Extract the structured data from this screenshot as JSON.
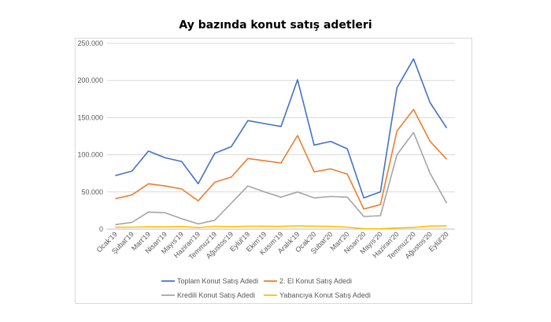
{
  "chart_data": {
    "type": "line",
    "title": "Ay bazında konut satış adetleri",
    "xlabel": "",
    "ylabel": "",
    "ylim": [
      0,
      250000
    ],
    "yticks": [
      "0",
      "50.000",
      "100.000",
      "150.000",
      "200.000",
      "250.000"
    ],
    "ytick_values": [
      0,
      50000,
      100000,
      150000,
      200000,
      250000
    ],
    "grid": true,
    "legend_position": "bottom",
    "categories": [
      "Ocak'19",
      "Şubat'19",
      "Mart'19",
      "Nisan'19",
      "Mayıs'19",
      "Haziran'19",
      "Temmuz'19",
      "Ağustos'19",
      "Eylül'19",
      "Ekim'19",
      "Kasım'19",
      "Aralık'19",
      "Ocak'20",
      "Şubat'20",
      "Mart'20",
      "Nisan'20",
      "Mayıs'20",
      "Haziran'20",
      "Temmuz'20",
      "Ağustos'20",
      "Eylül'20"
    ],
    "series": [
      {
        "name": "Toplam Konut Satış Adedi",
        "color": "#4472c4",
        "values": [
          72000,
          78000,
          105000,
          96000,
          91000,
          61000,
          102000,
          111000,
          146000,
          142000,
          138000,
          201000,
          113000,
          118000,
          108000,
          42000,
          50000,
          190000,
          229000,
          170000,
          136000
        ]
      },
      {
        "name": "2. El Konut Satış Adedi",
        "color": "#ed7d31",
        "values": [
          41000,
          46000,
          61000,
          58000,
          54000,
          38000,
          63000,
          70000,
          95000,
          92000,
          89000,
          126000,
          77000,
          81000,
          74000,
          27000,
          33000,
          132000,
          161000,
          118000,
          94000
        ]
      },
      {
        "name": "Kredili Konut Satış Adedi",
        "color": "#a5a5a5",
        "values": [
          6000,
          9000,
          23000,
          22000,
          14000,
          7000,
          12000,
          35000,
          58000,
          50000,
          43000,
          50000,
          42000,
          44000,
          43000,
          17000,
          18000,
          100000,
          130000,
          75000,
          35000
        ]
      },
      {
        "name": "Yabancıya Konut Satış Adedi",
        "color": "#ffc000",
        "values": [
          2500,
          2600,
          3100,
          3000,
          3500,
          2200,
          3700,
          3300,
          3800,
          3800,
          3600,
          4300,
          3900,
          3600,
          2700,
          500,
          500,
          1500,
          2300,
          4000,
          4500
        ]
      }
    ]
  }
}
